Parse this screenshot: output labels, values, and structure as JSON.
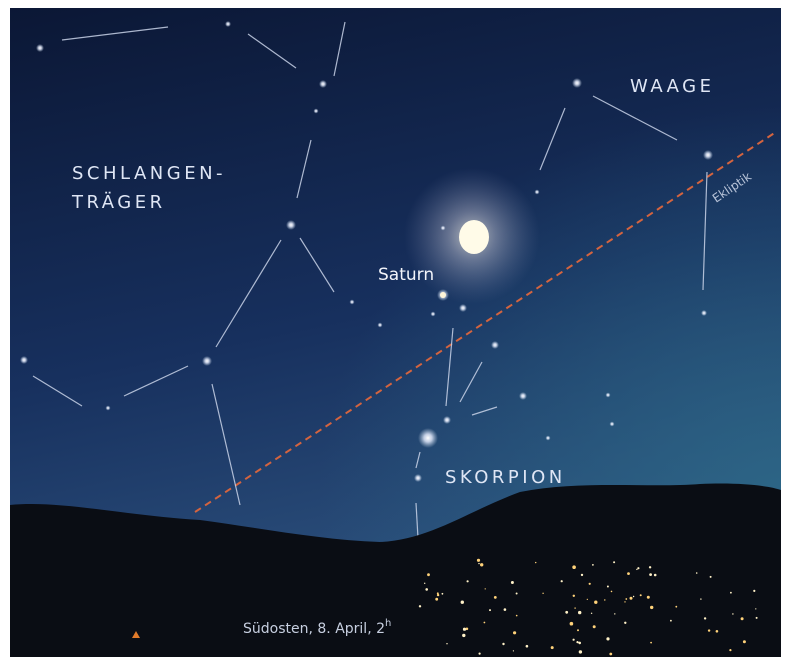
{
  "labels": {
    "waage": "WAAGE",
    "schlangentraeger_1": "SCHLANGEN-",
    "schlangentraeger_2": "TRÄGER",
    "saturn": "Saturn",
    "ekliptik": "Ekliptik",
    "skorpion": "SKORPION"
  },
  "caption": {
    "text": "Südosten, 8. April, 2",
    "superscript": "h"
  }
}
